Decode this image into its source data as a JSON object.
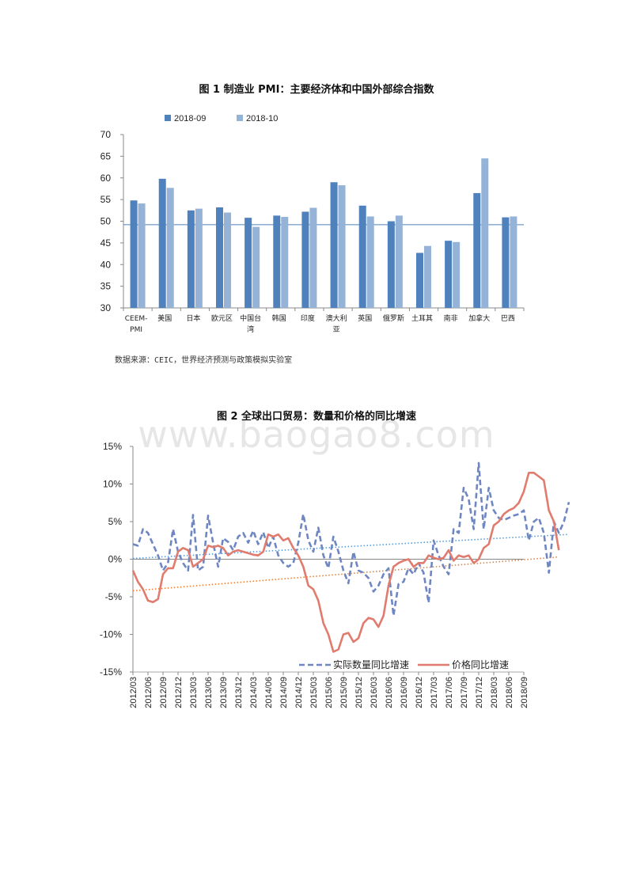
{
  "figure1": {
    "title": "图 1 制造业 PMI：主要经济体和中国外部综合指数",
    "source": "数据来源：CEIC，世界经济预测与政策模拟实验室",
    "chart_data": {
      "type": "bar",
      "categories": [
        [
          "CEEM-",
          "PMI"
        ],
        [
          "美国"
        ],
        [
          "日本"
        ],
        [
          "欧元区"
        ],
        [
          "中国台",
          "湾"
        ],
        [
          "韩国"
        ],
        [
          "印度"
        ],
        [
          "澳大利",
          "亚"
        ],
        [
          "英国"
        ],
        [
          "俄罗斯"
        ],
        [
          "土耳其"
        ],
        [
          "南非"
        ],
        [
          "加拿大"
        ],
        [
          "巴西"
        ]
      ],
      "series": [
        {
          "name": "2018-09",
          "color": "#4f81bd",
          "values": [
            54.8,
            59.8,
            52.5,
            53.2,
            50.8,
            51.3,
            52.2,
            59.0,
            53.6,
            50.0,
            42.7,
            45.5,
            56.5,
            50.9
          ]
        },
        {
          "name": "2018-10",
          "color": "#95b3d7",
          "values": [
            54.1,
            57.7,
            52.9,
            52.0,
            48.7,
            51.0,
            53.1,
            58.3,
            51.1,
            51.3,
            44.3,
            45.2,
            64.5,
            51.1
          ]
        }
      ],
      "ylim": [
        30,
        70
      ],
      "yticks": [
        30,
        35,
        40,
        45,
        50,
        55,
        60,
        65,
        70
      ],
      "reference_line": 49.2,
      "legend": "top-left",
      "grid": false
    }
  },
  "figure2": {
    "title": "图 2 全球出口贸易：数量和价格的同比增速",
    "watermark": "www.baogao8.com",
    "chart_data": {
      "type": "line",
      "x_ticks": [
        "2012/03",
        "2012/06",
        "2012/09",
        "2012/12",
        "2013/03",
        "2013/06",
        "2013/09",
        "2013/12",
        "2014/03",
        "2014/06",
        "2014/09",
        "2014/12",
        "2015/03",
        "2015/06",
        "2015/09",
        "2015/12",
        "2016/03",
        "2016/06",
        "2016/09",
        "2016/12",
        "2017/03",
        "2017/06",
        "2017/09",
        "2017/12",
        "2018/03",
        "2018/06",
        "2018/09"
      ],
      "yticks": [
        "15%",
        "10%",
        "5%",
        "0%",
        "-5%",
        "-10%",
        "-15%"
      ],
      "ylim": [
        -15,
        15
      ],
      "legend": "bottom-right",
      "series": [
        {
          "name": "实际数量同比增速",
          "color": "#6e87c2",
          "style": "dashed",
          "trend": [
            0.1,
            3.3
          ],
          "values": [
            2.0,
            1.8,
            4.0,
            3.5,
            2.0,
            0.5,
            -1.5,
            -0.5,
            4.0,
            1.0,
            -0.5,
            -1.5,
            5.9,
            -1.5,
            -1.0,
            5.8,
            2.2,
            -1.0,
            2.8,
            2.3,
            1.2,
            3.0,
            3.5,
            2.2,
            3.8,
            2.0,
            3.6,
            1.5,
            3.0,
            0.5,
            -0.5,
            -1.0,
            -0.5,
            2.2,
            6.0,
            2.5,
            1.0,
            4.2,
            0.5,
            -1.2,
            3.0,
            1.0,
            -1.5,
            -3.2,
            1.0,
            -1.5,
            -1.8,
            -2.5,
            -4.3,
            -3.5,
            -2.0,
            -1.2,
            -7.5,
            -3.3,
            -3.0,
            -1.2,
            -2.0,
            -0.5,
            -1.8,
            -5.8,
            2.5,
            0.5,
            -1.0,
            -2.0,
            4.0,
            3.5,
            9.5,
            8.0,
            4.0,
            12.8,
            4.0,
            9.5,
            6.5,
            5.5,
            5.2,
            5.5,
            5.8,
            6.0,
            6.5,
            2.5,
            5.0,
            5.5,
            3.5,
            -1.8,
            5.0,
            3.5,
            5.0,
            7.6
          ]
        },
        {
          "name": "价格同比增速",
          "color": "#e07b6e",
          "style": "solid",
          "trend": [
            -4.2,
            0.3
          ],
          "values": [
            -1.5,
            -3.0,
            -4.0,
            -5.5,
            -5.7,
            -5.3,
            -2.0,
            -1.2,
            -1.2,
            1.0,
            1.5,
            1.2,
            -1.0,
            -0.5,
            0.0,
            1.8,
            1.6,
            1.8,
            1.5,
            0.5,
            1.0,
            1.2,
            1.0,
            0.8,
            0.6,
            0.5,
            1.0,
            3.3,
            3.0,
            3.3,
            2.5,
            2.8,
            1.5,
            0.5,
            -1.0,
            -3.5,
            -4.0,
            -5.5,
            -8.5,
            -10.0,
            -12.3,
            -12.0,
            -10.0,
            -9.8,
            -11.0,
            -10.5,
            -8.5,
            -7.8,
            -8.0,
            -9.0,
            -7.5,
            -3.5,
            -1.0,
            -0.5,
            -0.2,
            0.0,
            -1.0,
            -0.5,
            -0.5,
            0.5,
            0.2,
            0.0,
            0.2,
            1.2,
            -0.2,
            0.5,
            0.3,
            0.5,
            -0.5,
            0.0,
            1.5,
            2.0,
            4.5,
            5.0,
            6.0,
            6.5,
            6.8,
            7.5,
            9.0,
            11.5,
            11.5,
            11.0,
            10.5,
            6.5,
            5.0,
            1.2
          ]
        }
      ]
    }
  }
}
